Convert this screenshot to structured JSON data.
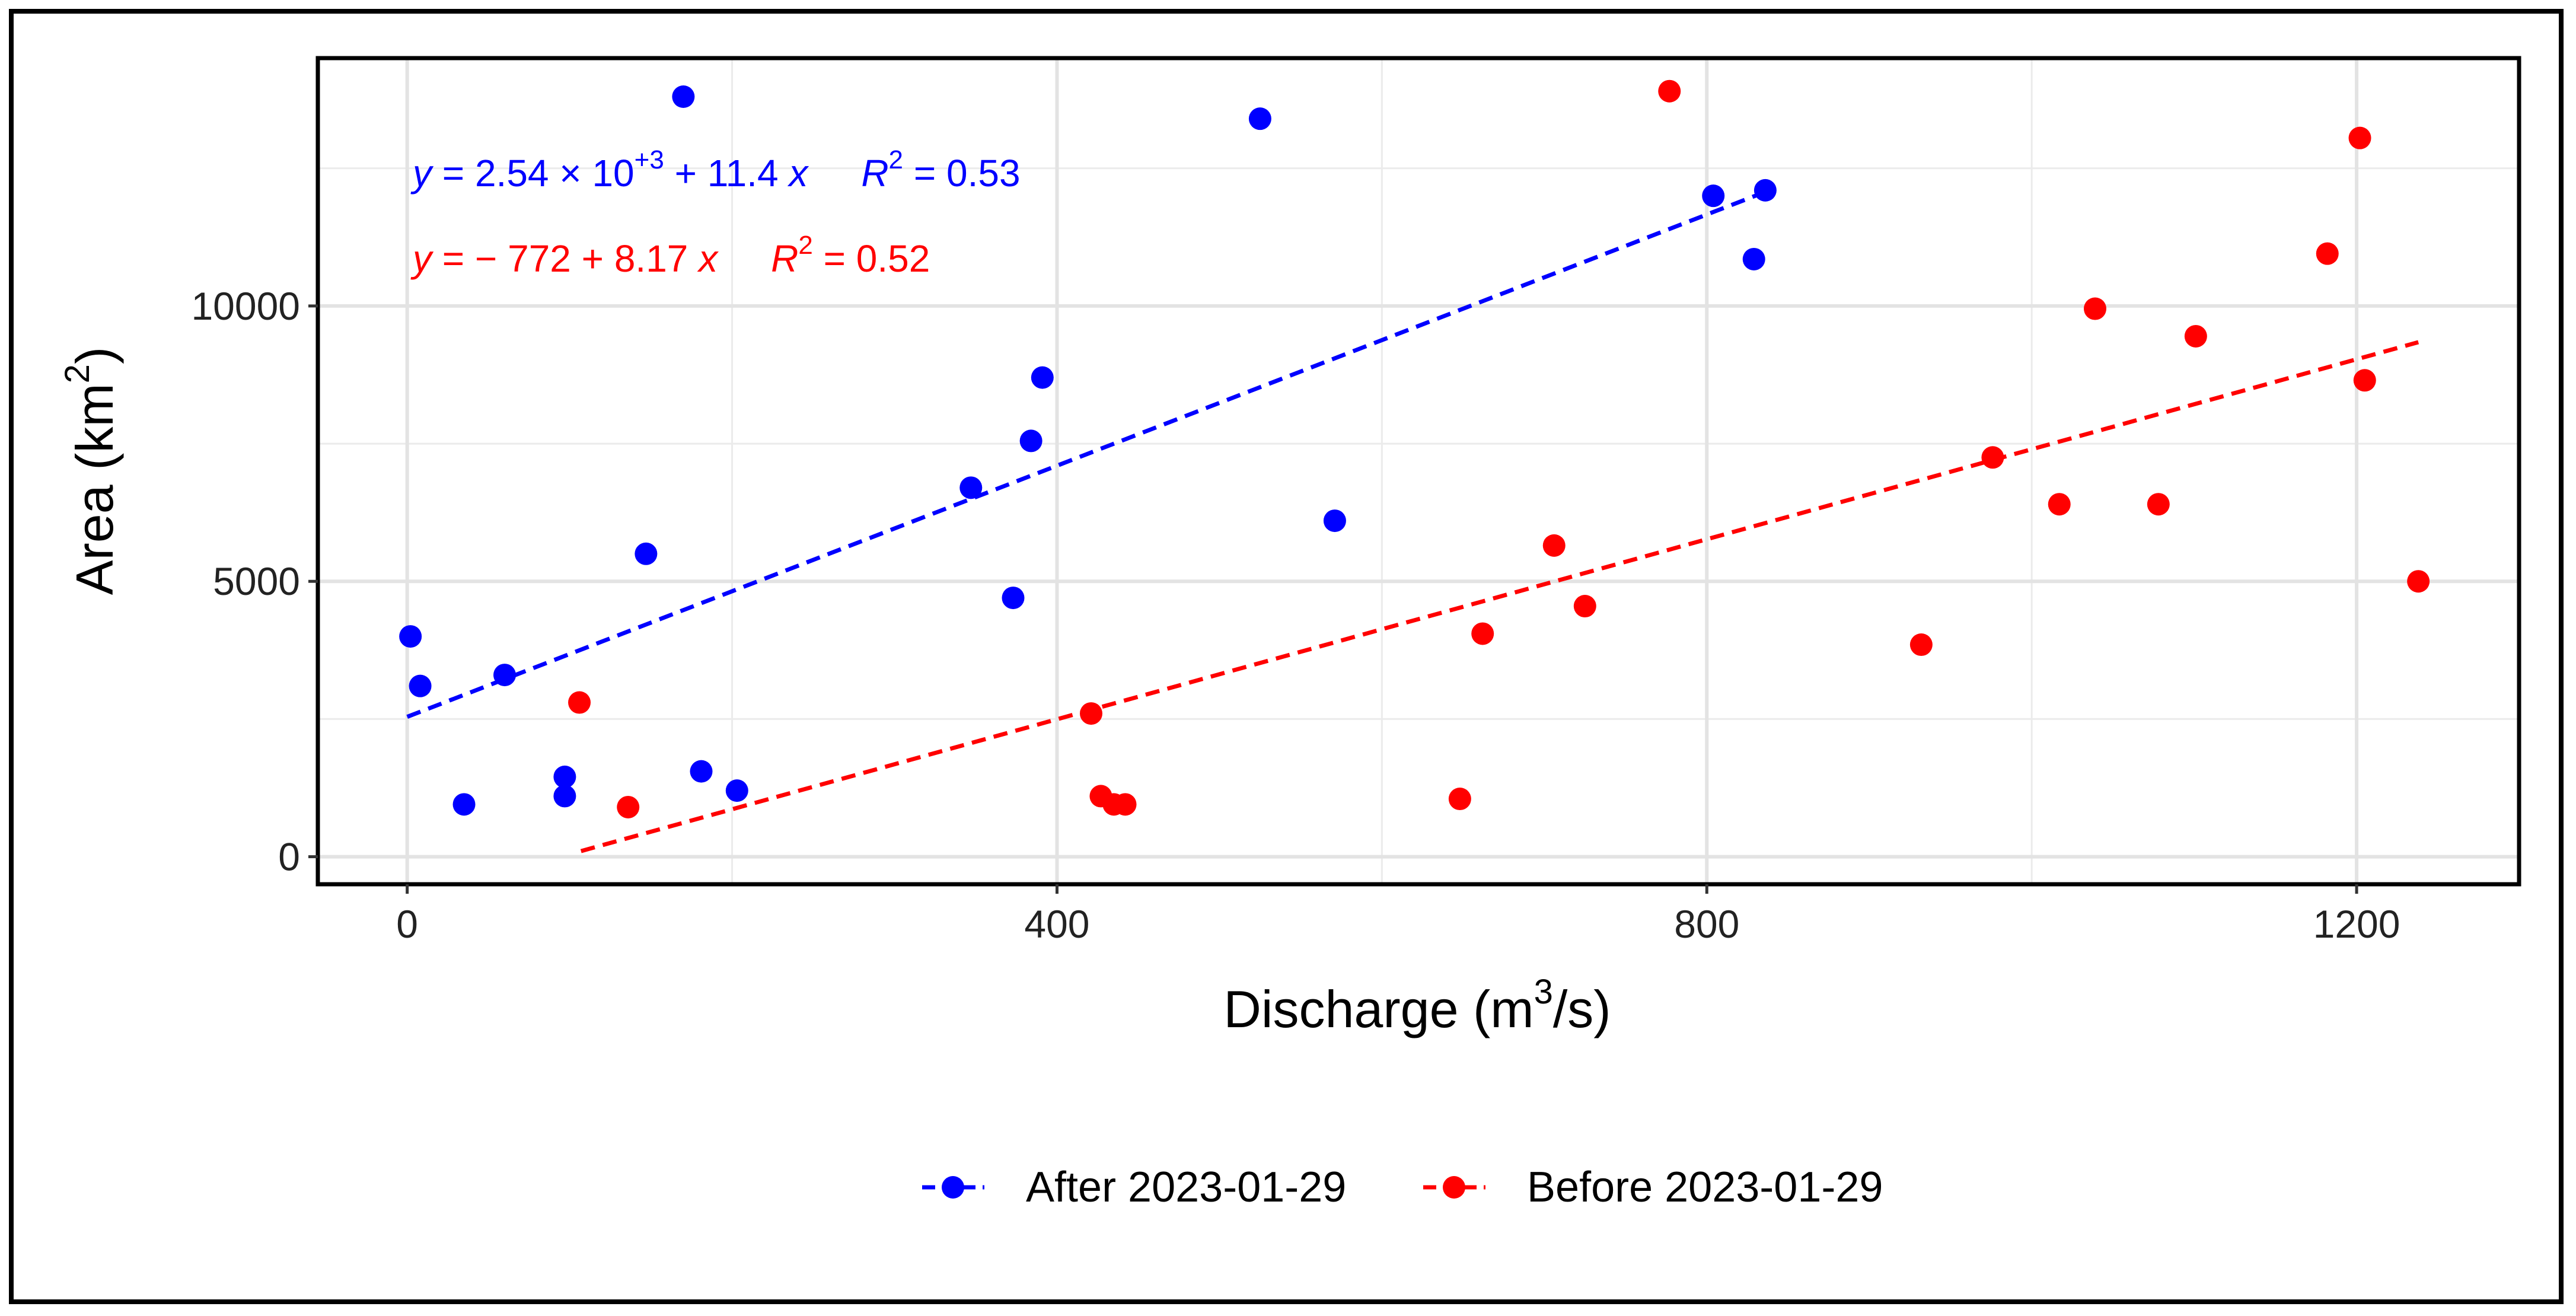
{
  "chart_data": {
    "type": "scatter",
    "xlabel_main": "Discharge (m",
    "xlabel_sup": "3",
    "xlabel_tail": "/s)",
    "ylabel_main": "Area (km",
    "ylabel_sup": "2",
    "ylabel_tail": ")",
    "xlim": [
      -55,
      1300
    ],
    "ylim": [
      -500,
      14500
    ],
    "x_ticks": [
      0,
      400,
      800,
      1200
    ],
    "x_tick_labels": [
      "0",
      "400",
      "800",
      "1200"
    ],
    "y_ticks": [
      0,
      5000,
      10000
    ],
    "y_tick_labels": [
      "0",
      "5000",
      "10000"
    ],
    "x_minor": [
      200,
      600,
      1000
    ],
    "y_minor": [
      2500,
      7500,
      12500
    ],
    "grid": true,
    "legend_position": "bottom",
    "series": [
      {
        "name": "After 2023-01-29",
        "color": "#0000ff",
        "fit": {
          "intercept": 2540,
          "slope": 11.4,
          "x_range": [
            0,
            835
          ]
        },
        "equation": {
          "y": "y",
          "eq": " = 2.54 × 10",
          "exp": "+3",
          "rest": " + 11.4 ",
          "x": "x",
          "r": "R",
          "r_exp": "2",
          "r_val": " = 0.53"
        },
        "points": [
          [
            2,
            4000
          ],
          [
            8,
            3100
          ],
          [
            35,
            950
          ],
          [
            60,
            3300
          ],
          [
            97,
            1450
          ],
          [
            97,
            1100
          ],
          [
            147,
            5500
          ],
          [
            170,
            13800
          ],
          [
            181,
            1550
          ],
          [
            203,
            1200
          ],
          [
            347,
            6700
          ],
          [
            373,
            4700
          ],
          [
            384,
            7550
          ],
          [
            391,
            8700
          ],
          [
            525,
            13400
          ],
          [
            571,
            6100
          ],
          [
            804,
            12000
          ],
          [
            829,
            10850
          ],
          [
            836,
            12100
          ]
        ]
      },
      {
        "name": "Before 2023-01-29",
        "color": "#ff0000",
        "fit": {
          "intercept": -772,
          "slope": 8.17,
          "x_range": [
            107,
            1238
          ]
        },
        "equation": {
          "y": "y",
          "eq": " = − 772 + 8.17 ",
          "x": "x",
          "r": "R",
          "r_exp": "2",
          "r_val": " = 0.52"
        },
        "points": [
          [
            106,
            2800
          ],
          [
            136,
            900
          ],
          [
            421,
            2600
          ],
          [
            427,
            1100
          ],
          [
            435,
            950
          ],
          [
            442,
            950
          ],
          [
            648,
            1050
          ],
          [
            662,
            4050
          ],
          [
            706,
            5650
          ],
          [
            725,
            4550
          ],
          [
            777,
            13900
          ],
          [
            932,
            3850
          ],
          [
            976,
            7250
          ],
          [
            1017,
            6400
          ],
          [
            1039,
            9950
          ],
          [
            1078,
            6400
          ],
          [
            1101,
            9450
          ],
          [
            1182,
            10950
          ],
          [
            1202,
            13050
          ],
          [
            1205,
            8650
          ],
          [
            1238,
            5000
          ]
        ]
      }
    ]
  }
}
